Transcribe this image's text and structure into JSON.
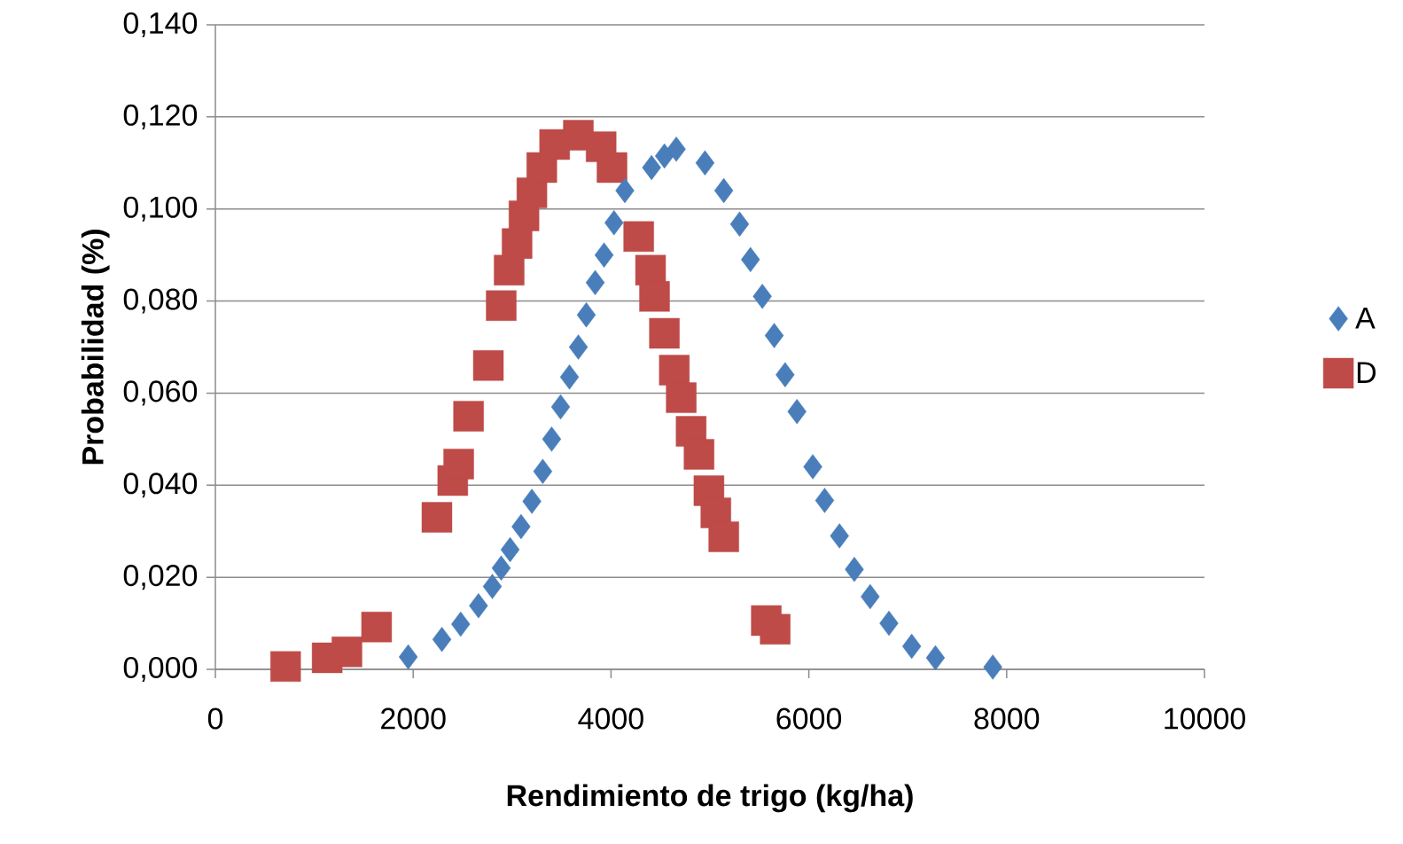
{
  "chart_data": {
    "type": "scatter",
    "xlabel": "Rendimiento de trigo (kg/ha)",
    "ylabel": "Probabilidad (%)",
    "xlim": [
      0,
      10000
    ],
    "xticks": [
      0,
      2000,
      4000,
      6000,
      8000,
      10000
    ],
    "ylim": [
      0,
      0.14
    ],
    "yticks": [
      {
        "value": 0,
        "label": "0,000"
      },
      {
        "value": 0.02,
        "label": "0,020"
      },
      {
        "value": 0.04,
        "label": "0,040"
      },
      {
        "value": 0.06,
        "label": "0,060"
      },
      {
        "value": 0.08,
        "label": "0,080"
      },
      {
        "value": 0.1,
        "label": "0,100"
      },
      {
        "value": 0.12,
        "label": "0,120"
      },
      {
        "value": 0.14,
        "label": "0,140"
      }
    ],
    "grid": "y",
    "legend": "right",
    "series": [
      {
        "name": "A",
        "color": "#4a7ebb",
        "marker": "diamond",
        "x": [
          1950,
          2290,
          2480,
          2660,
          2800,
          2890,
          2980,
          3090,
          3200,
          3310,
          3400,
          3490,
          3580,
          3670,
          3750,
          3840,
          3930,
          4030,
          4140,
          4410,
          4540,
          4660,
          4950,
          5140,
          5300,
          5410,
          5530,
          5650,
          5760,
          5880,
          6040,
          6160,
          6310,
          6460,
          6620,
          6810,
          7040,
          7280,
          7860
        ],
        "values": [
          0.0027,
          0.0065,
          0.0098,
          0.0138,
          0.018,
          0.022,
          0.026,
          0.031,
          0.0365,
          0.043,
          0.05,
          0.057,
          0.0635,
          0.07,
          0.077,
          0.084,
          0.09,
          0.097,
          0.104,
          0.109,
          0.1115,
          0.113,
          0.11,
          0.104,
          0.0967,
          0.089,
          0.081,
          0.0725,
          0.064,
          0.056,
          0.044,
          0.0367,
          0.029,
          0.0217,
          0.0158,
          0.01,
          0.005,
          0.0025,
          0.0005
        ]
      },
      {
        "name": "D",
        "color": "#be4b48",
        "marker": "square",
        "x": [
          710,
          1030,
          1130,
          1330,
          1630,
          2240,
          2400,
          2460,
          2560,
          2760,
          2890,
          2970,
          3050,
          3120,
          3200,
          3300,
          3430,
          3670,
          3900,
          4010,
          4130,
          4280,
          4400,
          4440,
          4540,
          4640,
          4710,
          4810,
          4890,
          4990,
          5060,
          5140,
          5570,
          5660
        ],
        "values": [
          0.0006,
          null,
          0.0025,
          0.0038,
          0.0092,
          0.033,
          0.041,
          0.0446,
          0.055,
          0.066,
          0.079,
          0.0867,
          0.0925,
          0.0985,
          0.1035,
          0.109,
          0.114,
          0.116,
          0.1135,
          0.109,
          null,
          0.094,
          0.0867,
          0.081,
          0.073,
          0.065,
          0.059,
          0.0517,
          0.0467,
          0.0388,
          0.034,
          0.0288,
          0.0106,
          0.0087
        ]
      }
    ]
  }
}
